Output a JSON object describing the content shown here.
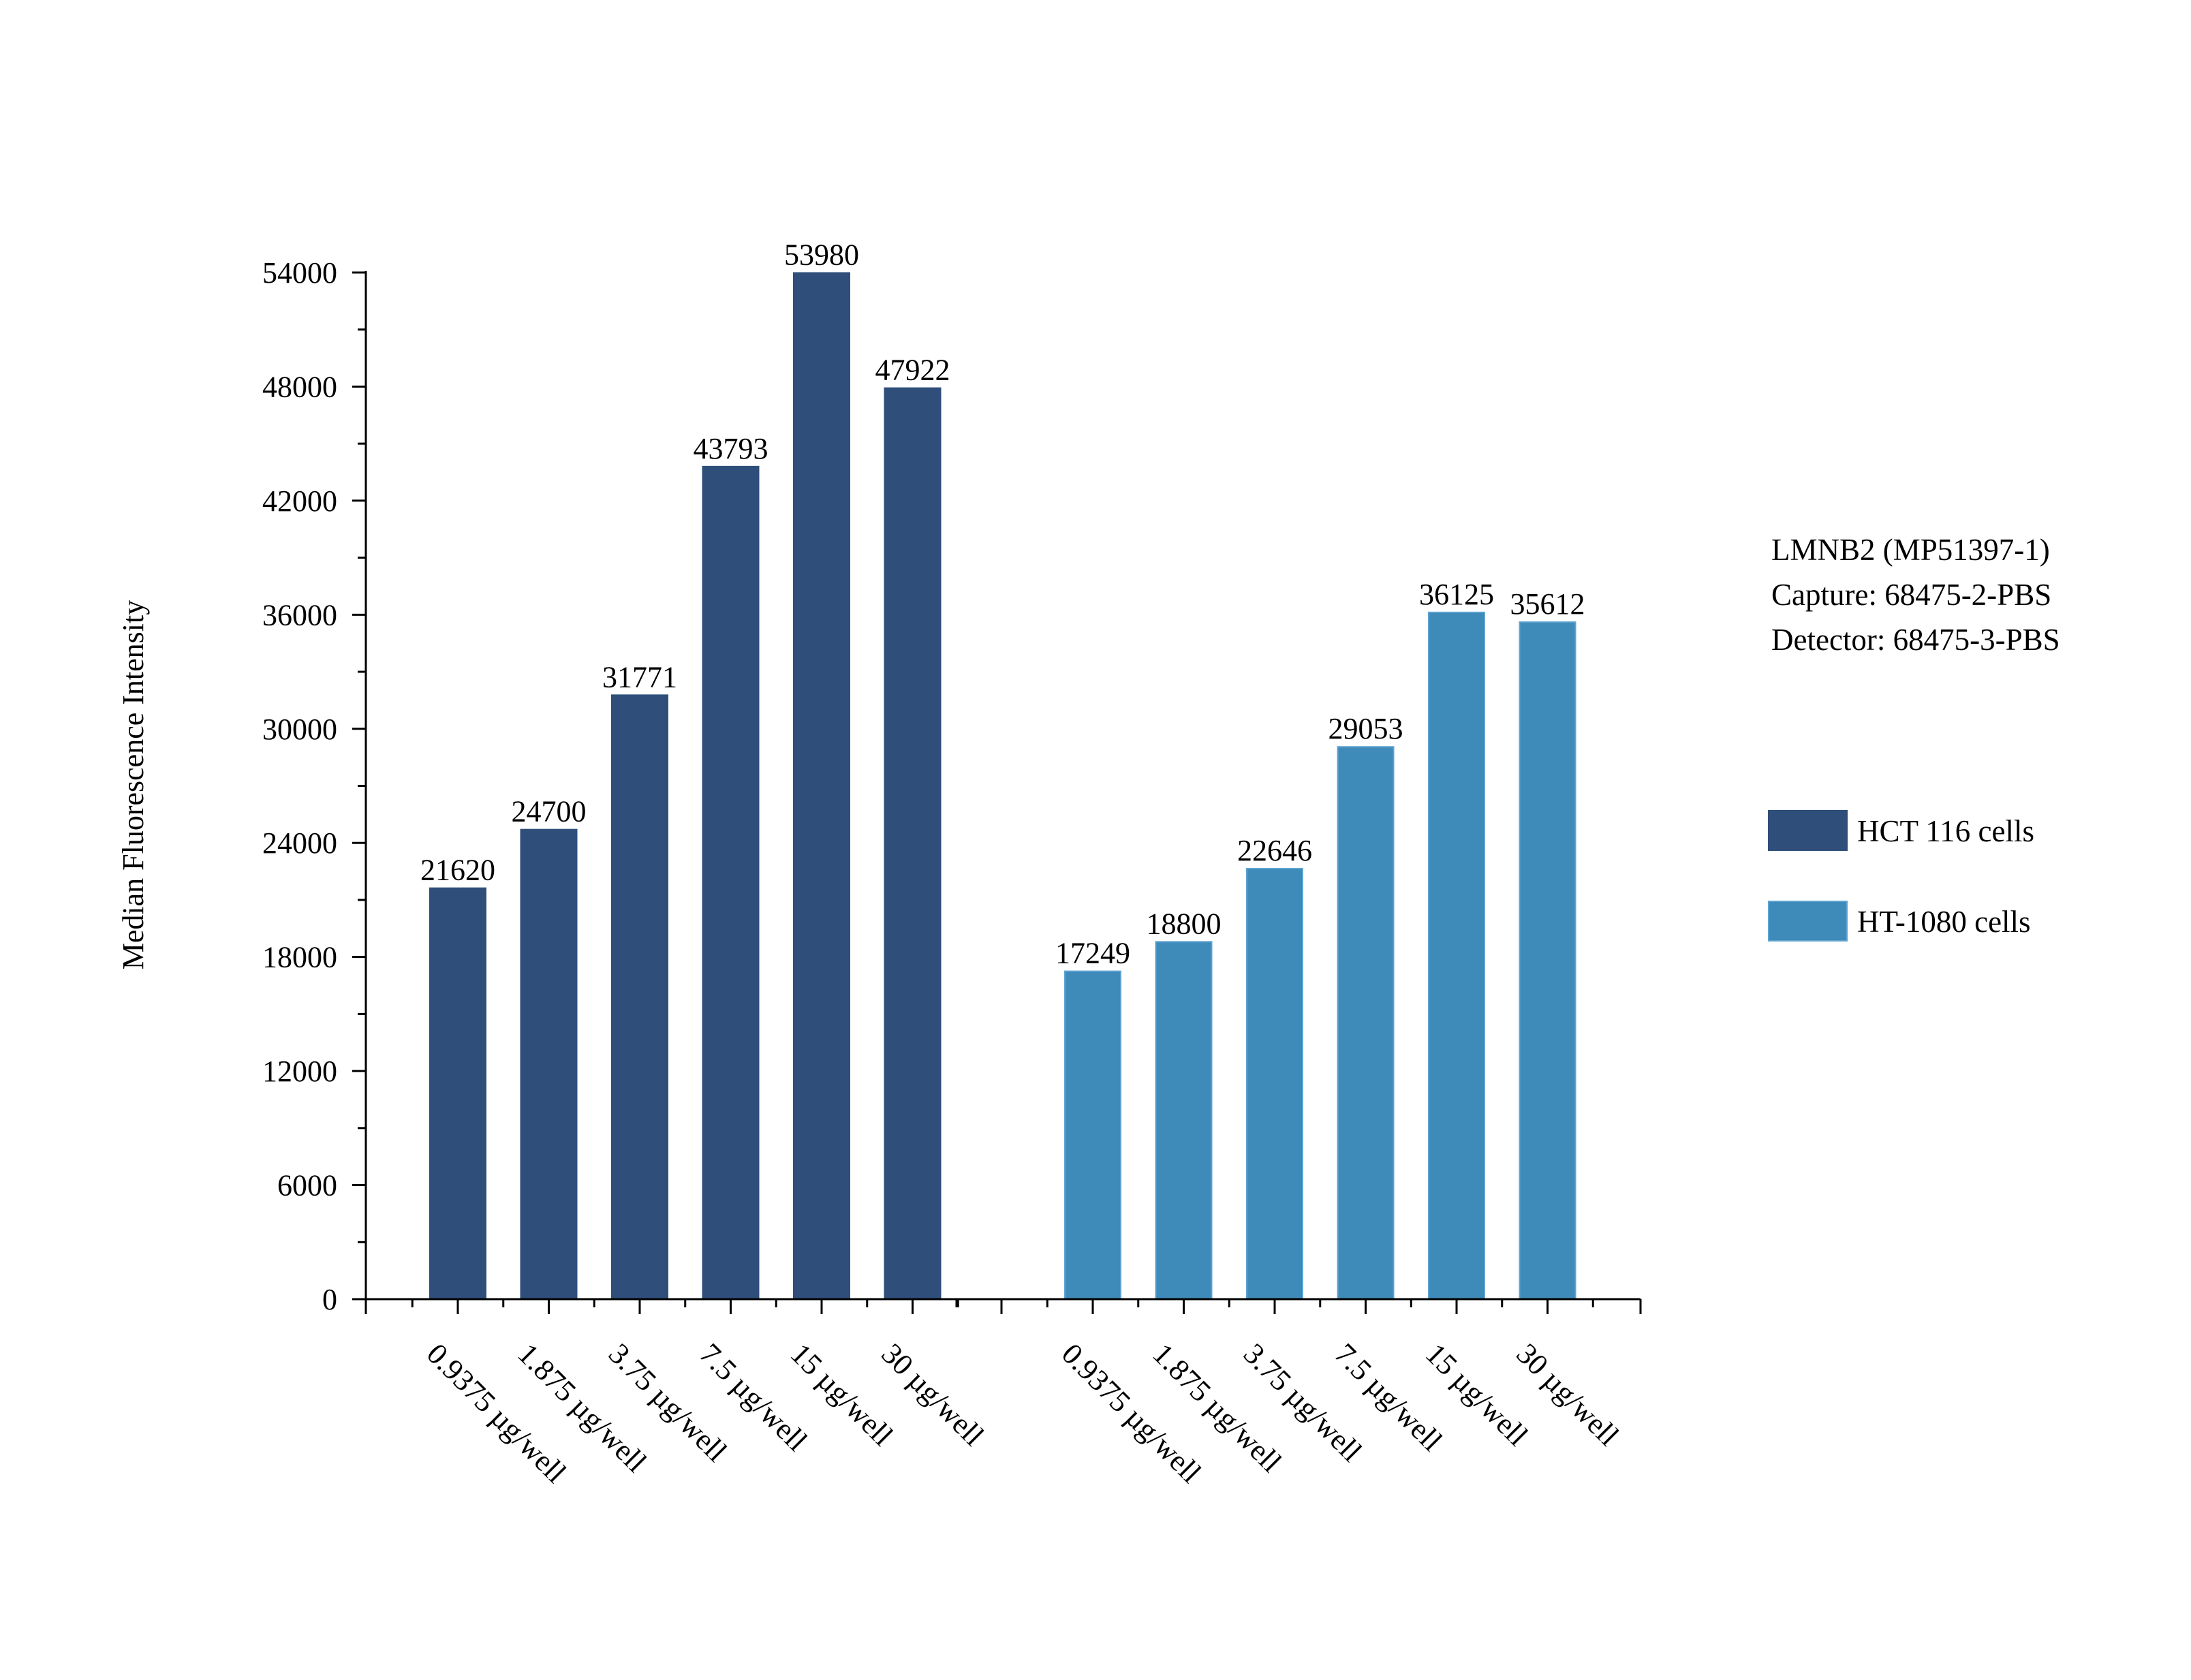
{
  "chart_data": {
    "type": "bar",
    "title": "",
    "xlabel": "",
    "ylabel": "Median Fluorescence Intensity",
    "ylim": [
      0,
      54000
    ],
    "y_ticks": [
      0,
      6000,
      12000,
      18000,
      24000,
      30000,
      36000,
      42000,
      48000,
      54000
    ],
    "categories": [
      "0.9375 µg/well",
      "1.875 µg/well",
      "3.75 µg/well",
      "7.5 µg/well",
      "15 µg/well",
      "30 µg/well"
    ],
    "series": [
      {
        "name": "HCT 116 cells",
        "color": "#2f4f7a",
        "values": [
          21620,
          24700,
          31771,
          43793,
          53980,
          47922
        ]
      },
      {
        "name": "HT-1080 cells",
        "color": "#3e8ab9",
        "values": [
          17249,
          18800,
          22646,
          29053,
          36125,
          35612
        ]
      }
    ],
    "grid": false,
    "legend_position": "right"
  },
  "info": {
    "lines": [
      "LMNB2 (MP51397-1)",
      "Capture: 68475-2-PBS",
      "Detector: 68475-3-PBS"
    ]
  }
}
